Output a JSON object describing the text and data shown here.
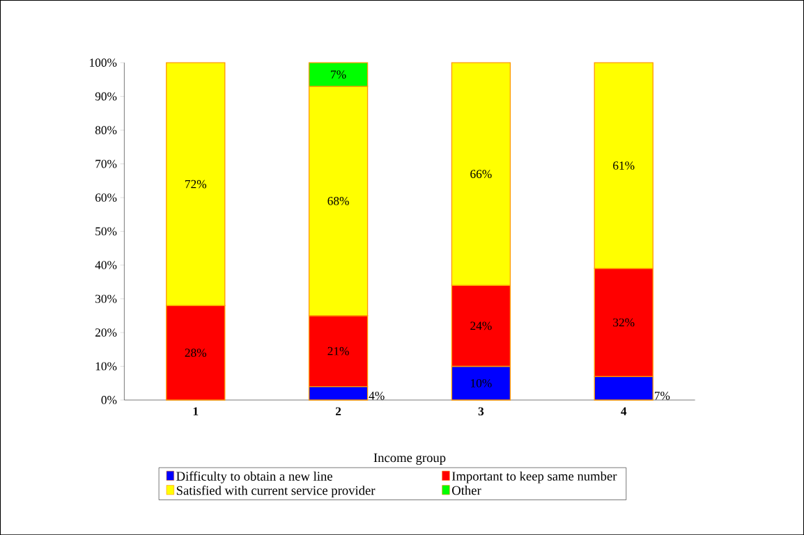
{
  "chart_data": {
    "type": "bar",
    "stacked": true,
    "xlabel": "Income group",
    "categories": [
      "1",
      "2",
      "3",
      "4"
    ],
    "series": [
      {
        "name": "Difficulty to obtain a new line",
        "color": "#0000ff",
        "values": [
          null,
          4,
          10,
          7
        ],
        "value_labels": [
          null,
          "4%",
          "10%",
          "7%"
        ]
      },
      {
        "name": "Important to keep same number",
        "color": "#ff0000",
        "values": [
          28,
          21,
          24,
          32
        ],
        "value_labels": [
          "28%",
          "21%",
          "24%",
          "32%"
        ]
      },
      {
        "name": "Satisfied with current service provider",
        "color": "#ffff00",
        "values": [
          72,
          68,
          66,
          61
        ],
        "value_labels": [
          "72%",
          "68%",
          "66%",
          "61%"
        ]
      },
      {
        "name": "Other",
        "color": "#00ff00",
        "values": [
          null,
          7,
          null,
          null
        ],
        "value_labels": [
          null,
          "7%",
          null,
          null
        ]
      }
    ],
    "ylim": [
      0,
      100
    ],
    "yticks": [
      {
        "value": 0,
        "label": "0%"
      },
      {
        "value": 10,
        "label": "10%"
      },
      {
        "value": 20,
        "label": "20%"
      },
      {
        "value": 30,
        "label": "30%"
      },
      {
        "value": 40,
        "label": "40%"
      },
      {
        "value": 50,
        "label": "50%"
      },
      {
        "value": 60,
        "label": "60%"
      },
      {
        "value": 70,
        "label": "70%"
      },
      {
        "value": 80,
        "label": "80%"
      },
      {
        "value": 90,
        "label": "90%"
      },
      {
        "value": 100,
        "label": "100%"
      }
    ],
    "legend": "bottom"
  }
}
